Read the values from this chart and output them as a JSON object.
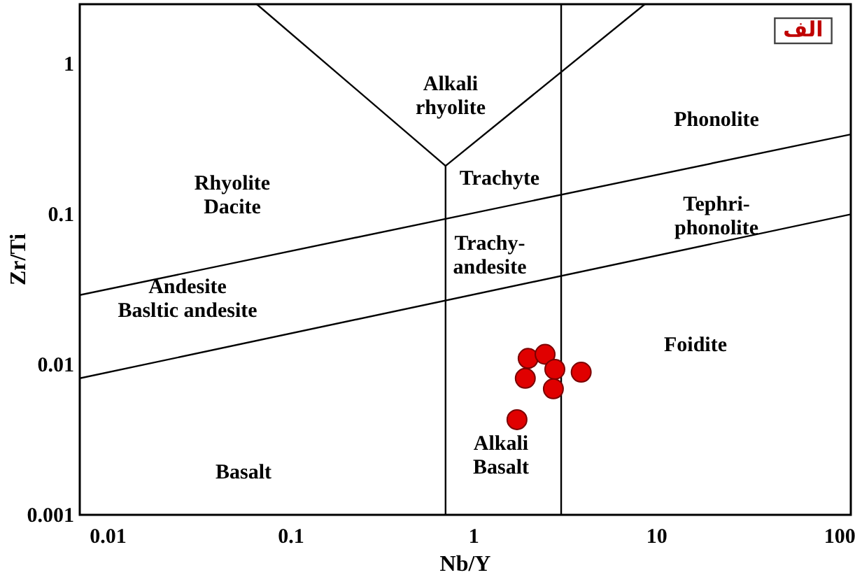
{
  "chart_data": {
    "type": "scatter",
    "xlabel": "Nb/Y",
    "ylabel": "Zr/Ti",
    "log": "xy",
    "grid": false,
    "xlim": [
      0.007,
      115
    ],
    "ylim": [
      0.001,
      2.5
    ],
    "xticks": [
      0.01,
      0.1,
      1,
      10,
      100
    ],
    "yticks": [
      0.001,
      0.01,
      0.1,
      1
    ],
    "series": [
      {
        "marker": "circle",
        "color": "#e00000",
        "x": [
          1.98,
          2.45,
          2.77,
          1.91,
          3.86,
          2.72,
          1.72
        ],
        "values": [
          0.011,
          0.0117,
          0.0093,
          0.0081,
          0.0089,
          0.0069,
          0.0043
        ]
      },
      {
        "type": "line",
        "color": "#000000",
        "x": [
          0.7,
          0.7
        ],
        "values": [
          0.001,
          0.21
        ]
      },
      {
        "type": "line",
        "color": "#000000",
        "x": [
          3,
          3
        ],
        "values": [
          0.001,
          2.5
        ]
      },
      {
        "type": "line",
        "color": "#000000",
        "x": [
          0.065,
          0.7
        ],
        "values": [
          2.5,
          0.21
        ]
      },
      {
        "type": "line",
        "color": "#000000",
        "x": [
          0.7,
          8.6
        ],
        "values": [
          0.21,
          2.5
        ]
      },
      {
        "type": "line",
        "color": "#000000",
        "x": [
          0.007,
          115
        ],
        "values": [
          0.029,
          0.34
        ]
      },
      {
        "type": "line",
        "color": "#000000",
        "x": [
          0.007,
          115
        ],
        "values": [
          0.0081,
          0.1
        ]
      }
    ],
    "annotations": [
      "الف",
      "Alkali\nrhyolite",
      "Rhyolite\nDacite",
      "Trachyte",
      "Phonolite",
      "Tephri-\nphonolite",
      "Trachy-\nandesite",
      "Andesite\nBasltic andesite",
      "Foidite",
      "Basalt",
      "Alkali\nBasalt"
    ]
  }
}
